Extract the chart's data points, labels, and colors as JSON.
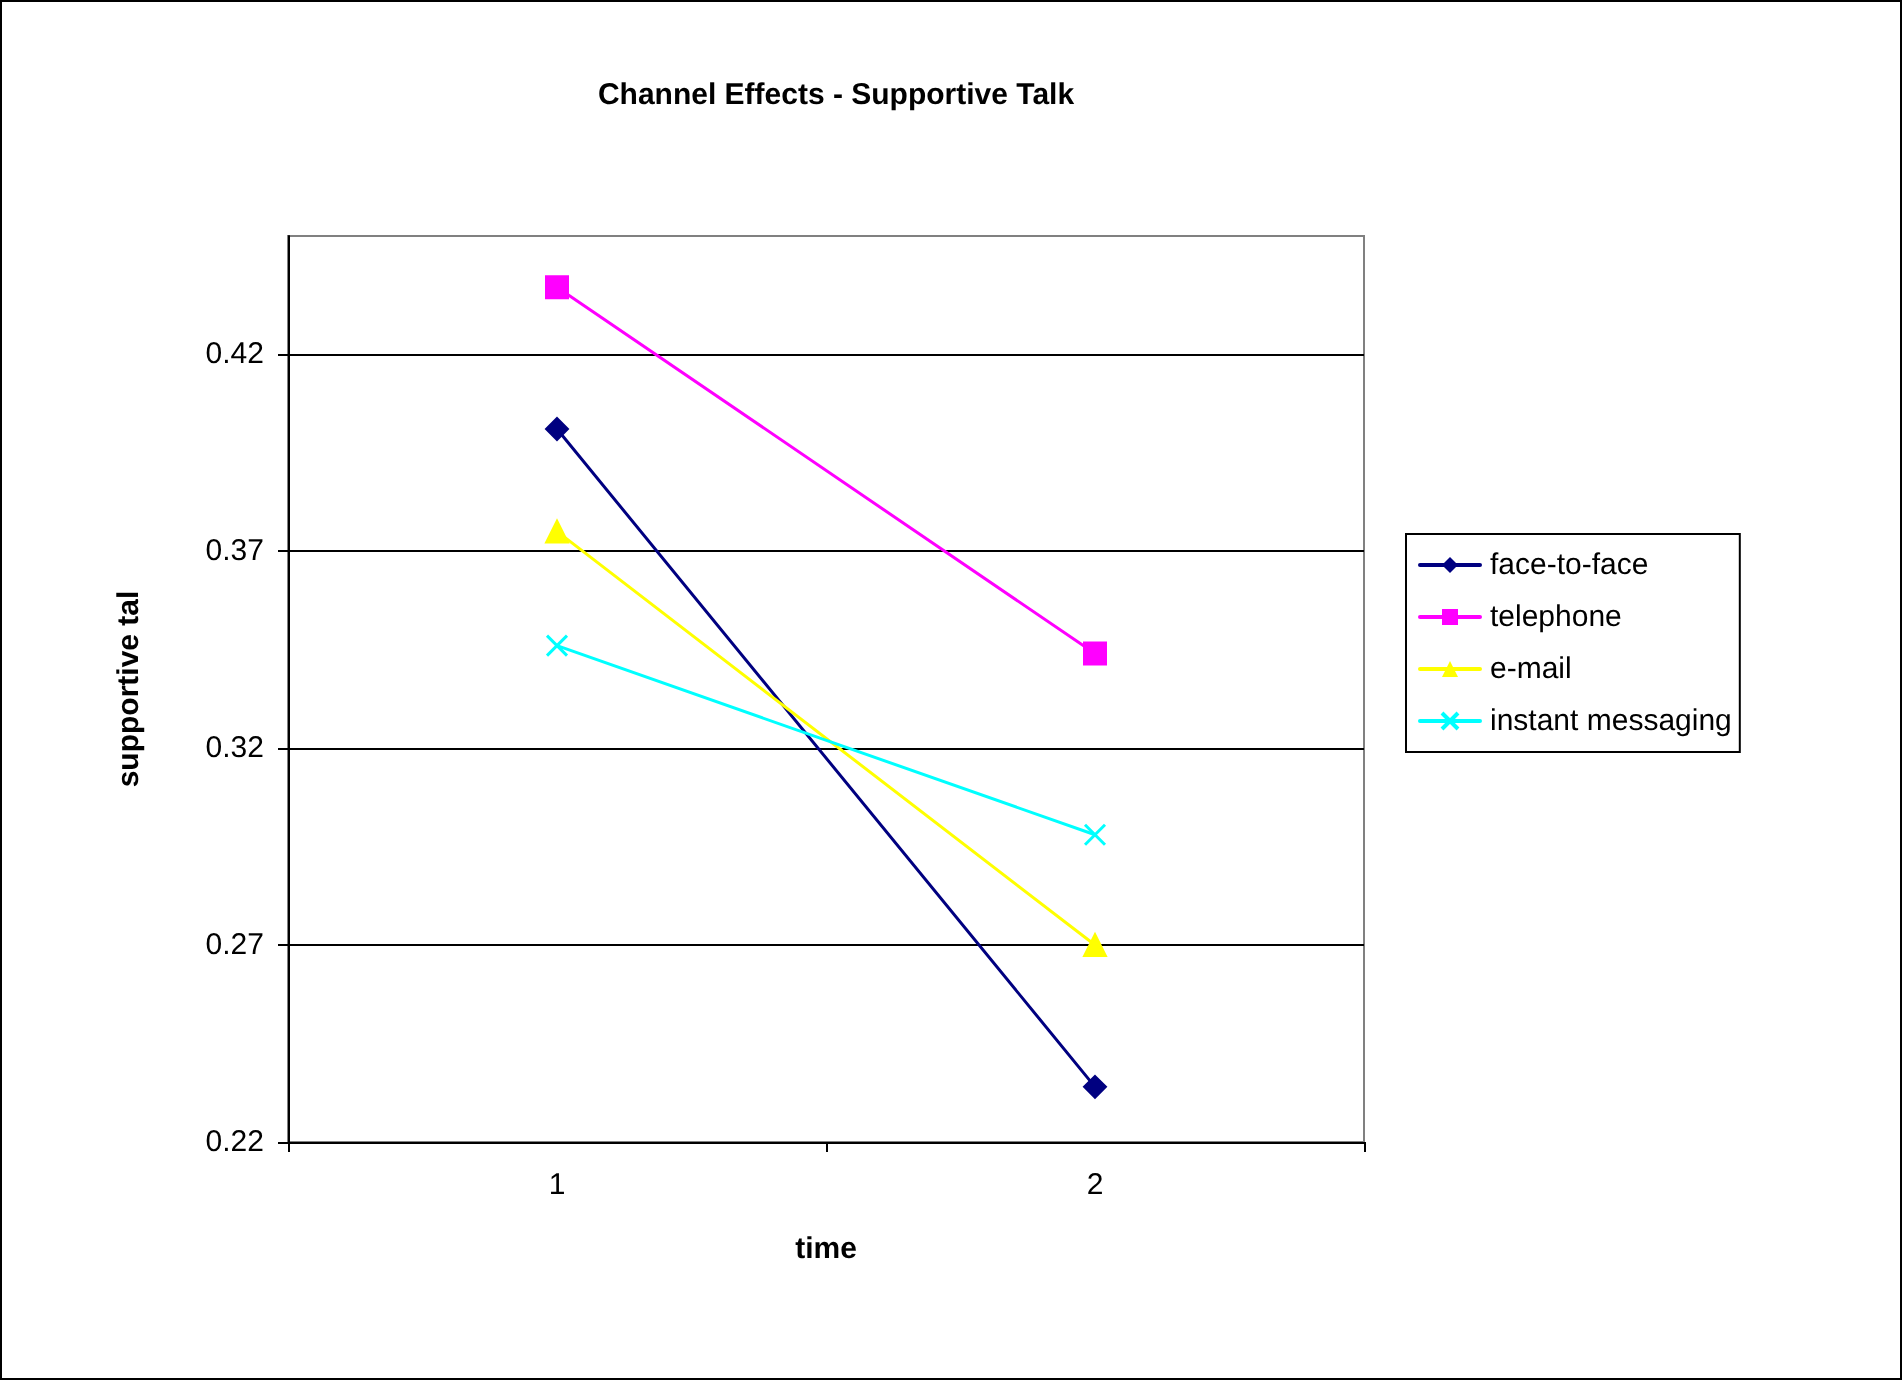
{
  "chart_data": {
    "type": "line",
    "title": "Channel Effects - Supportive Talk",
    "xlabel": "time",
    "ylabel": "supportive tal",
    "categories": [
      "1",
      "2"
    ],
    "series": [
      {
        "name": "face-to-face",
        "color": "#000080",
        "marker": "diamond",
        "values": [
          0.401,
          0.234
        ]
      },
      {
        "name": "telephone",
        "color": "#ff00ff",
        "marker": "square",
        "values": [
          0.437,
          0.344
        ]
      },
      {
        "name": "e-mail",
        "color": "#ffff00",
        "marker": "triangle",
        "values": [
          0.375,
          0.27
        ]
      },
      {
        "name": "instant messaging",
        "color": "#00ffff",
        "marker": "cross",
        "values": [
          0.346,
          0.298
        ]
      }
    ],
    "ylim": [
      0.22,
      0.45
    ],
    "yticks": [
      0.22,
      0.27,
      0.32,
      0.37,
      0.42
    ],
    "grid": "y",
    "legend": "right",
    "line_style": "solid"
  }
}
